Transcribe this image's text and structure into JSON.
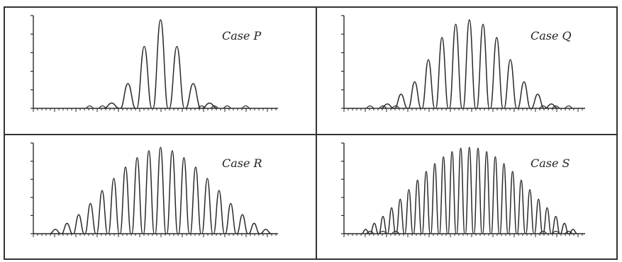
{
  "figure": {
    "ink_color": "#2a2a2a",
    "frame_color": "#333333",
    "background": "#ffffff",
    "panels": [
      {
        "label": "Case P",
        "peaks": [
          0.06,
          0.28,
          0.7,
          1.0,
          0.7,
          0.28,
          0.06
        ],
        "y_ticks": 5
      },
      {
        "label": "Case Q",
        "peaks": [
          0.05,
          0.16,
          0.3,
          0.55,
          0.8,
          0.95,
          1.0,
          0.95,
          0.8,
          0.55,
          0.3,
          0.16,
          0.05
        ],
        "y_ticks": 5
      },
      {
        "label": "Case R",
        "peaks": [
          0.05,
          0.12,
          0.22,
          0.35,
          0.5,
          0.64,
          0.77,
          0.88,
          0.96,
          1.0,
          0.96,
          0.88,
          0.77,
          0.64,
          0.5,
          0.35,
          0.22,
          0.12,
          0.05
        ],
        "y_ticks": 5
      },
      {
        "label": "Case S",
        "peaks": [
          0.05,
          0.12,
          0.2,
          0.3,
          0.4,
          0.51,
          0.62,
          0.72,
          0.81,
          0.89,
          0.95,
          0.99,
          1.0,
          0.99,
          0.95,
          0.89,
          0.81,
          0.72,
          0.62,
          0.51,
          0.4,
          0.3,
          0.2,
          0.12,
          0.05
        ],
        "y_ticks": 5
      }
    ]
  }
}
